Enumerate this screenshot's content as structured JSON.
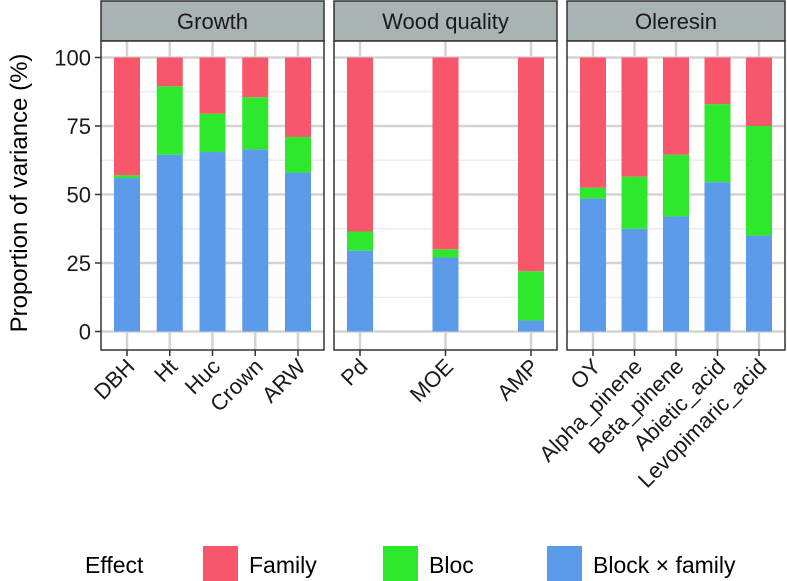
{
  "chart_data": {
    "type": "bar",
    "stacked": true,
    "ylabel": "Proportion of variance (%)",
    "xlabel": "",
    "ylim": [
      0,
      100
    ],
    "yticks": [
      0,
      25,
      50,
      75,
      100
    ],
    "legend": {
      "title": "Effect",
      "position": "bottom",
      "entries": [
        {
          "name": "Family",
          "color": "#f8566a"
        },
        {
          "name": "Bloc",
          "color": "#2ee82e"
        },
        {
          "name": "Block × family",
          "color": "#5b9bea"
        }
      ]
    },
    "series_order_bottom_to_top": [
      "Block × family",
      "Bloc",
      "Family"
    ],
    "panels": [
      {
        "title": "Growth",
        "categories": [
          "DBH",
          "Ht",
          "Huc",
          "Crown",
          "ARW"
        ],
        "series": [
          {
            "name": "Block × family",
            "values": [
              56,
              64.5,
              65.5,
              66.5,
              58
            ]
          },
          {
            "name": "Bloc",
            "values": [
              1,
              25,
              14,
              19,
              13
            ]
          },
          {
            "name": "Family",
            "values": [
              43,
              10.5,
              20.5,
              14.5,
              29
            ]
          }
        ]
      },
      {
        "title": "Wood quality",
        "categories": [
          "Pd",
          "MOE",
          "AMP"
        ],
        "series": [
          {
            "name": "Block × family",
            "values": [
              29.5,
              27,
              4
            ]
          },
          {
            "name": "Bloc",
            "values": [
              7,
              3,
              18
            ]
          },
          {
            "name": "Family",
            "values": [
              63.5,
              70,
              78
            ]
          }
        ]
      },
      {
        "title": "Oleresin",
        "categories": [
          "OY",
          "Alpha_pinene",
          "Beta_pinene",
          "Abietic_acid",
          "Levopimaric_acid"
        ],
        "series": [
          {
            "name": "Block × family",
            "values": [
              48.5,
              37.5,
              42,
              54.5,
              35
            ]
          },
          {
            "name": "Bloc",
            "values": [
              4,
              19,
              22.5,
              28.5,
              40
            ]
          },
          {
            "name": "Family",
            "values": [
              47.5,
              43.5,
              35.5,
              17,
              25
            ]
          }
        ]
      }
    ]
  }
}
